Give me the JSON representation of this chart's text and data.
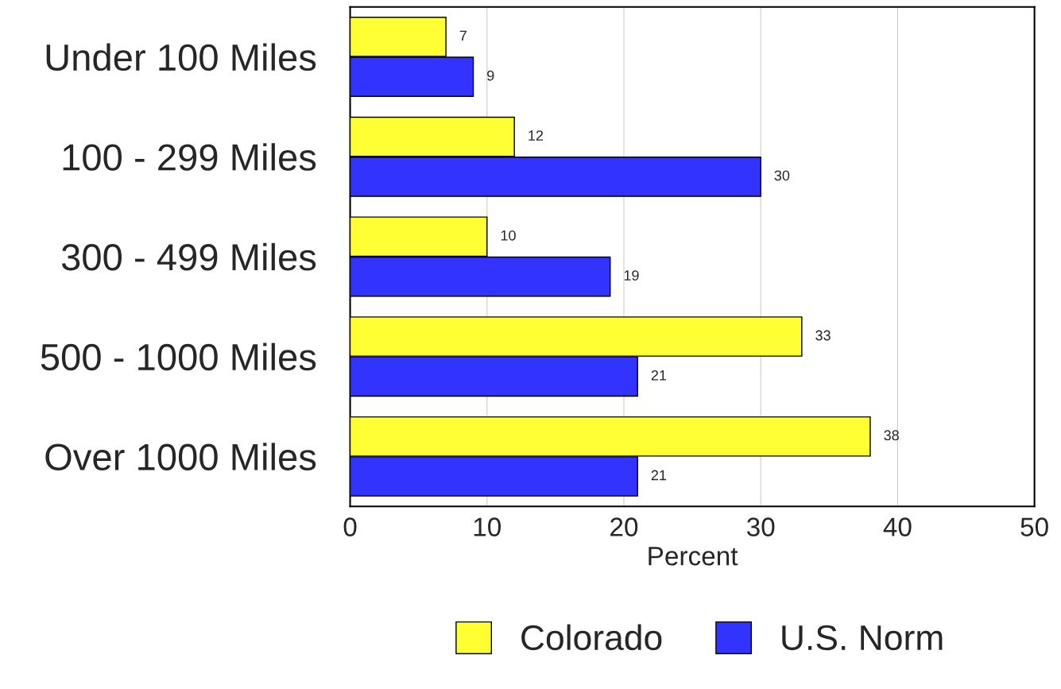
{
  "chart_data": {
    "type": "bar",
    "orientation": "horizontal",
    "xlabel": "Percent",
    "categories": [
      "Under 100 Miles",
      "100 - 299 Miles",
      "300 - 499 Miles",
      "500 - 1000 Miles",
      "Over 1000 Miles"
    ],
    "series": [
      {
        "name": "Colorado",
        "color": "#ffff33",
        "values": [
          7,
          12,
          10,
          33,
          38
        ]
      },
      {
        "name": "U.S. Norm",
        "color": "#3333ff",
        "values": [
          9,
          30,
          19,
          21,
          21
        ]
      }
    ],
    "xlim": [
      0,
      50
    ],
    "xticks": [
      0,
      10,
      20,
      30,
      40,
      50
    ],
    "grid": "x",
    "legend": "bottom",
    "data_labels": true
  }
}
